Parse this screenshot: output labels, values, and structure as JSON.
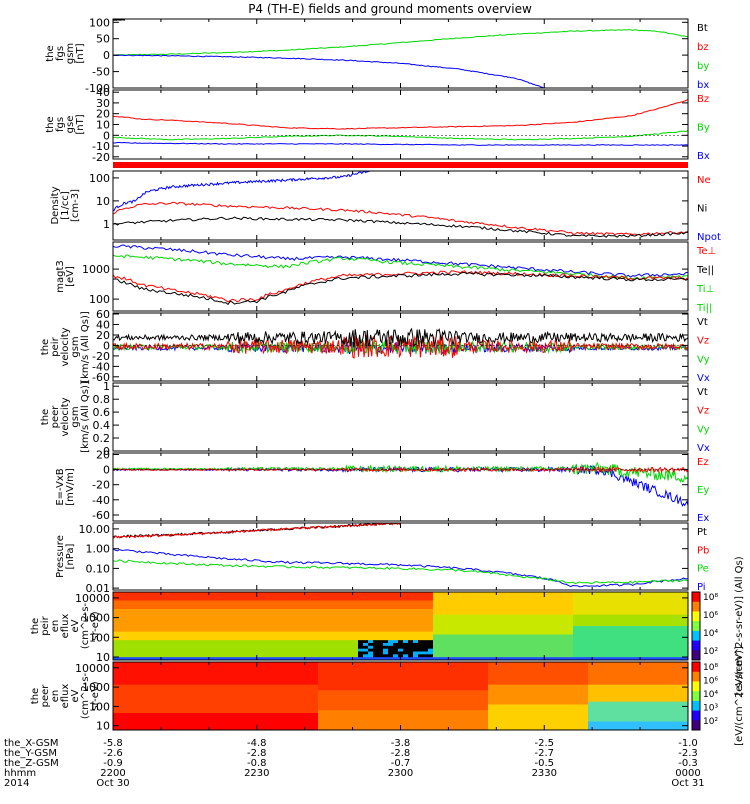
{
  "title": "P4 (TH-E) fields and ground moments overview",
  "colors": {
    "black": "#000000",
    "red": "#ff0000",
    "green": "#00d800",
    "blue": "#0000ff",
    "grey": "#a0a0a0"
  },
  "chart_data": [
    {
      "type": "line",
      "name": "panel-fgs-gsm",
      "ylabel": [
        "the",
        "fgs",
        "gsm",
        "[nT]"
      ],
      "yticks": [
        100,
        50,
        0,
        -50,
        -100
      ],
      "ylim": [
        -100,
        110
      ],
      "legend": [
        {
          "label": "Bt",
          "color": "#000000"
        },
        {
          "label": "bz",
          "color": "#ff0000"
        },
        {
          "label": "by",
          "color": "#00d800"
        },
        {
          "label": "bx",
          "color": "#0000ff"
        }
      ],
      "series": [
        {
          "color": "#00d800",
          "x": [
            0,
            0.1,
            0.2,
            0.3,
            0.4,
            0.5,
            0.6,
            0.7,
            0.8,
            0.9,
            0.95,
            1.0
          ],
          "y": [
            0,
            3,
            8,
            15,
            25,
            38,
            52,
            64,
            73,
            77,
            72,
            55
          ]
        },
        {
          "color": "#0000ff",
          "x": [
            0,
            0.1,
            0.2,
            0.3,
            0.4,
            0.5,
            0.6,
            0.7,
            0.75
          ],
          "y": [
            0,
            -2,
            -5,
            -9,
            -15,
            -25,
            -42,
            -70,
            -100
          ]
        },
        {
          "color": "#000000",
          "x": [
            0,
            0.02
          ],
          "y": [
            107,
            108
          ]
        }
      ]
    },
    {
      "type": "line",
      "name": "panel-fgs-gse",
      "ylabel": [
        "the",
        "fgs",
        "gse",
        "[nT]"
      ],
      "yticks": [
        40,
        30,
        20,
        10,
        0,
        -10,
        -20
      ],
      "ylim": [
        -22,
        42
      ],
      "legend": [
        {
          "label": "Bz",
          "color": "#ff0000"
        },
        {
          "label": "By",
          "color": "#00d800"
        },
        {
          "label": "Bx",
          "color": "#0000ff"
        }
      ],
      "series": [
        {
          "color": "#ff0000",
          "x": [
            0,
            0.05,
            0.1,
            0.2,
            0.3,
            0.4,
            0.5,
            0.6,
            0.7,
            0.8,
            0.85,
            0.9,
            0.95,
            1.0
          ],
          "y": [
            18,
            15,
            14,
            11,
            7,
            6,
            7,
            8,
            9,
            12,
            15,
            18,
            25,
            33
          ]
        },
        {
          "color": "#00d800",
          "x": [
            0,
            0.1,
            0.2,
            0.3,
            0.4,
            0.5,
            0.6,
            0.7,
            0.8,
            0.9,
            1.0
          ],
          "y": [
            -2,
            -4,
            -3,
            -1,
            0,
            -1,
            -3,
            -4,
            -3,
            -1,
            4
          ]
        },
        {
          "color": "#0000ff",
          "x": [
            0,
            0.2,
            0.4,
            0.6,
            0.8,
            1.0
          ],
          "y": [
            -7,
            -8,
            -8,
            -9,
            -9,
            -9
          ]
        }
      ]
    },
    {
      "type": "line",
      "name": "panel-density",
      "log": true,
      "ylabel": [
        "Density",
        "[1/cc]",
        "[cm-3]"
      ],
      "yticks": [
        100,
        10,
        1
      ],
      "ylim": [
        0.2,
        200
      ],
      "legend": [
        {
          "label": "Ne",
          "color": "#ff0000"
        },
        {
          "label": "Ni",
          "color": "#000000"
        },
        {
          "label": "Npot",
          "color": "#0000ff"
        }
      ],
      "series": [
        {
          "color": "#0000ff",
          "x": [
            0,
            0.02,
            0.04,
            0.06,
            0.1,
            0.2,
            0.3,
            0.4,
            0.45
          ],
          "y": [
            4,
            8,
            10,
            25,
            40,
            60,
            80,
            110,
            200
          ]
        },
        {
          "color": "#ff0000",
          "x": [
            0,
            0.05,
            0.1,
            0.2,
            0.3,
            0.4,
            0.5,
            0.6,
            0.7,
            0.8,
            0.9,
            1.0
          ],
          "y": [
            3,
            7,
            8,
            6,
            5,
            4,
            2.5,
            1.3,
            0.7,
            0.4,
            0.35,
            0.45
          ]
        },
        {
          "color": "#000000",
          "x": [
            0,
            0.1,
            0.2,
            0.3,
            0.4,
            0.5,
            0.6,
            0.7,
            0.8,
            0.9,
            1.0
          ],
          "y": [
            1,
            1.4,
            1.8,
            1.6,
            1.5,
            1.1,
            0.8,
            0.5,
            0.3,
            0.3,
            0.4
          ]
        }
      ]
    },
    {
      "type": "line",
      "name": "panel-temperature",
      "log": true,
      "ylabel": [
        "magt3",
        "[eV]"
      ],
      "yticks": [
        1000,
        100
      ],
      "ylim": [
        40,
        8000
      ],
      "legend": [
        {
          "label": "Te⊥",
          "color": "#ff0000"
        },
        {
          "label": "Te||",
          "color": "#000000"
        },
        {
          "label": "Ti⊥",
          "color": "#00d800"
        },
        {
          "label": "Ti||",
          "color": "#00d800"
        }
      ],
      "series": [
        {
          "color": "#0000ff",
          "x": [
            0,
            0.1,
            0.2,
            0.3,
            0.4,
            0.5,
            0.6,
            0.7,
            0.8,
            0.9,
            1.0
          ],
          "y": [
            6000,
            4500,
            3000,
            2200,
            2500,
            2000,
            1500,
            1100,
            800,
            600,
            700
          ]
        },
        {
          "color": "#00d800",
          "x": [
            0,
            0.1,
            0.2,
            0.3,
            0.4,
            0.5,
            0.6,
            0.7,
            0.8,
            0.9,
            1.0
          ],
          "y": [
            2800,
            2200,
            1500,
            1200,
            2300,
            1600,
            1200,
            900,
            700,
            500,
            600
          ]
        },
        {
          "color": "#ff0000",
          "x": [
            0,
            0.05,
            0.1,
            0.2,
            0.25,
            0.3,
            0.4,
            0.5,
            0.6,
            0.7,
            0.8,
            0.9,
            1.0
          ],
          "y": [
            600,
            300,
            200,
            90,
            100,
            200,
            600,
            700,
            800,
            700,
            600,
            500,
            500
          ]
        },
        {
          "color": "#000000",
          "x": [
            0,
            0.05,
            0.1,
            0.2,
            0.25,
            0.3,
            0.4,
            0.5,
            0.6,
            0.7,
            0.8,
            0.9,
            1.0
          ],
          "y": [
            450,
            220,
            160,
            75,
            85,
            170,
            500,
            600,
            700,
            650,
            550,
            450,
            450
          ]
        }
      ]
    },
    {
      "type": "line",
      "name": "panel-peir-velocity",
      "noisy": true,
      "ylabel": [
        "the",
        "peir",
        "velocity",
        "gsm",
        "[km/s (All Qs)]"
      ],
      "yticks": [
        60,
        40,
        20,
        0,
        -20,
        -40,
        -60
      ],
      "ylim": [
        -68,
        62
      ],
      "legend": [
        {
          "label": "Vt",
          "color": "#000000"
        },
        {
          "label": "Vz",
          "color": "#ff0000"
        },
        {
          "label": "Vy",
          "color": "#00d800"
        },
        {
          "label": "Vx",
          "color": "#0000ff"
        }
      ],
      "series": [
        {
          "color": "#0000ff",
          "base": -5,
          "amp": [
            4,
            8,
            12,
            8,
            4
          ]
        },
        {
          "color": "#00d800",
          "base": -3,
          "amp": [
            5,
            10,
            14,
            10,
            5
          ]
        },
        {
          "color": "#ff0000",
          "base": -2,
          "amp": [
            6,
            14,
            22,
            12,
            6
          ]
        },
        {
          "color": "#000000",
          "base": 15,
          "amp": [
            5,
            12,
            18,
            10,
            8
          ]
        }
      ]
    },
    {
      "type": "line",
      "name": "panel-peer-velocity",
      "ylabel": [
        "the",
        "peer",
        "velocity",
        "gsm",
        "[km/s (All Qs)]"
      ],
      "yticks": [
        1.0,
        0.8,
        0.6,
        0.4,
        0.2,
        0.0
      ],
      "ylim": [
        0,
        1.05
      ],
      "legend": [
        {
          "label": "Vt",
          "color": "#000000"
        },
        {
          "label": "Vz",
          "color": "#ff0000"
        },
        {
          "label": "Vy",
          "color": "#00d800"
        },
        {
          "label": "Vx",
          "color": "#0000ff"
        }
      ],
      "series": []
    },
    {
      "type": "line",
      "name": "panel-e-field",
      "noisy": true,
      "ylabel": [
        "E=-VxB",
        "[mV/m]"
      ],
      "yticks": [
        20,
        0,
        -20,
        -40,
        -60
      ],
      "ylim": [
        -68,
        22
      ],
      "legend": [
        {
          "label": "Ez",
          "color": "#ff0000"
        },
        {
          "label": "Ey",
          "color": "#00d800"
        },
        {
          "label": "Ex",
          "color": "#0000ff"
        }
      ],
      "series": [
        {
          "color": "#0000ff",
          "base": 0,
          "amp": [
            1,
            2,
            3,
            3,
            6
          ],
          "tail": -45
        },
        {
          "color": "#00d800",
          "base": 1,
          "amp": [
            1,
            2,
            4,
            3,
            8
          ],
          "tail": -10
        },
        {
          "color": "#ff0000",
          "base": 0,
          "amp": [
            1,
            1,
            2,
            2,
            3
          ],
          "tail": 0
        }
      ]
    },
    {
      "type": "line",
      "name": "panel-pressure",
      "log": true,
      "ylabel": [
        "Pressure",
        "[nPa]"
      ],
      "yticks": [
        "10.00",
        "1.00",
        "0.10",
        "0.01"
      ],
      "ytickvals": [
        10,
        1,
        0.1,
        0.01
      ],
      "ylim": [
        0.008,
        20
      ],
      "legend": [
        {
          "label": "Pt",
          "color": "#000000"
        },
        {
          "label": "Pb",
          "color": "#ff0000"
        },
        {
          "label": "Pe",
          "color": "#00d800"
        },
        {
          "label": "Pi",
          "color": "#0000ff"
        }
      ],
      "series": [
        {
          "color": "#000000",
          "x": [
            0,
            0.1,
            0.2,
            0.3,
            0.4,
            0.5
          ],
          "y": [
            4,
            5,
            7,
            10,
            14,
            20
          ]
        },
        {
          "color": "#ff0000",
          "x": [
            0,
            0.1,
            0.2,
            0.3,
            0.4,
            0.5
          ],
          "y": [
            3.8,
            4.8,
            6.8,
            9.8,
            13.8,
            19.5
          ]
        },
        {
          "color": "#0000ff",
          "x": [
            0,
            0.1,
            0.2,
            0.3,
            0.4,
            0.5,
            0.6,
            0.7,
            0.8,
            0.9,
            1.0
          ],
          "y": [
            0.9,
            0.5,
            0.3,
            0.2,
            0.18,
            0.15,
            0.1,
            0.05,
            0.012,
            0.015,
            0.03
          ]
        },
        {
          "color": "#00d800",
          "x": [
            0,
            0.1,
            0.2,
            0.3,
            0.4,
            0.5,
            0.6,
            0.7,
            0.8,
            0.9,
            1.0
          ],
          "y": [
            0.25,
            0.18,
            0.14,
            0.12,
            0.11,
            0.1,
            0.08,
            0.04,
            0.018,
            0.02,
            0.025
          ]
        }
      ]
    },
    {
      "type": "heatmap",
      "name": "panel-peir-eflux",
      "ylabel": [
        "the",
        "peir",
        "en",
        "eflux",
        "eV",
        "(cm^2-s-",
        "sr-eV)"
      ],
      "yticks": [
        10000,
        1000,
        100,
        10
      ],
      "ylim": [
        7,
        20000
      ],
      "colorbar": {
        "ticks": [
          "10⁸",
          "10⁶",
          "10⁴",
          "10²"
        ],
        "label": "[eV/(cm^2-s-sr-eV)] (All Qs)"
      }
    },
    {
      "type": "heatmap",
      "name": "panel-peer-eflux",
      "ylabel": [
        "the",
        "peer",
        "en",
        "eflux",
        "eV",
        "(cm^2-s-",
        "sr-eV)"
      ],
      "yticks": [
        10000,
        1000,
        100,
        10
      ],
      "ylim": [
        6,
        20000
      ],
      "colorbar": {
        "ticks": [
          "10⁸",
          "10⁶",
          "10⁴",
          "10³",
          "10²"
        ],
        "label": "[eV/(cm^2-s-sr-eV)]"
      }
    }
  ],
  "xaxis": {
    "rows": [
      {
        "label": "the_X-GSM",
        "values": [
          "-5.8",
          "-4.8",
          "-3.8",
          "-2.5",
          "-1.0"
        ]
      },
      {
        "label": "the_Y-GSM",
        "values": [
          "-2.6",
          "-2.8",
          "-2.8",
          "-2.7",
          "-2.3"
        ]
      },
      {
        "label": "the_Z-GSM",
        "values": [
          "-0.9",
          "-0.8",
          "-0.7",
          "-0.5",
          "-0.3"
        ]
      },
      {
        "label": "hhmm",
        "values": [
          "2200",
          "2230",
          "2300",
          "2330",
          "0000"
        ]
      },
      {
        "label": "2014",
        "values": [
          "Oct 30",
          "",
          "",
          "",
          "Oct 31"
        ]
      }
    ]
  }
}
